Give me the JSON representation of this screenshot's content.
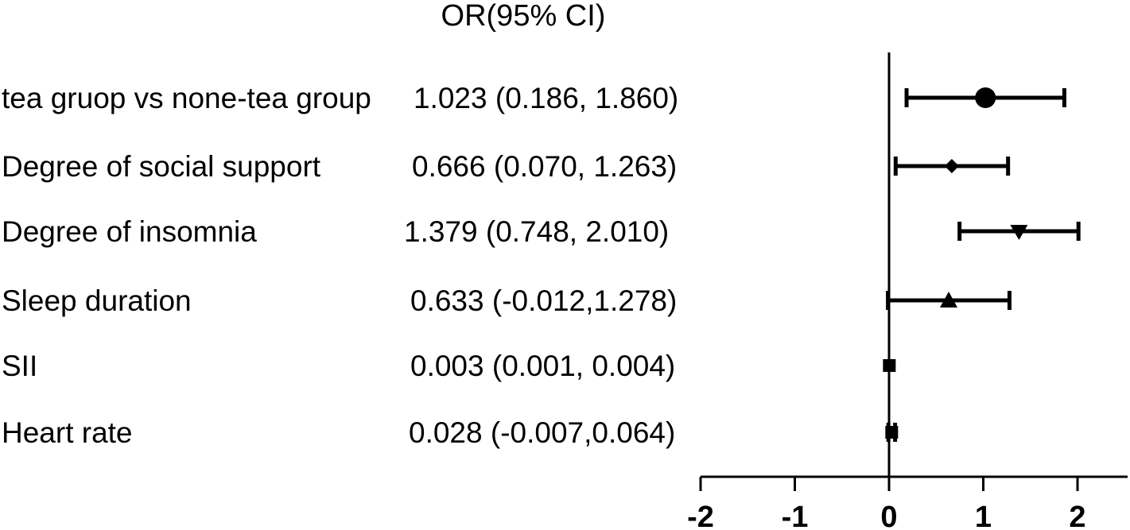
{
  "chart_data": {
    "type": "scatter",
    "subtype": "forest-plot",
    "column_header": "OR(95% CI)",
    "rows": [
      {
        "label": "tea gruop vs none-tea group",
        "value_text": "1.023 (0.186, 1.860)",
        "estimate": 1.023,
        "lower": 0.186,
        "upper": 1.86,
        "marker": "circle"
      },
      {
        "label": "Degree of social support",
        "value_text": "0.666 (0.070, 1.263)",
        "estimate": 0.666,
        "lower": 0.07,
        "upper": 1.263,
        "marker": "diamond"
      },
      {
        "label": "Degree of insomnia",
        "value_text": "1.379  (0.748, 2.010)",
        "estimate": 1.379,
        "lower": 0.748,
        "upper": 2.01,
        "marker": "triangle-down"
      },
      {
        "label": "Sleep duration",
        "value_text": "0.633 (-0.012,1.278)",
        "estimate": 0.633,
        "lower": -0.012,
        "upper": 1.278,
        "marker": "triangle-up"
      },
      {
        "label": "SII",
        "value_text": "0.003  (0.001, 0.004)",
        "estimate": 0.003,
        "lower": 0.001,
        "upper": 0.004,
        "marker": "square"
      },
      {
        "label": "Heart rate",
        "value_text": "0.028  (-0.007,0.064)",
        "estimate": 0.028,
        "lower": -0.007,
        "upper": 0.064,
        "marker": "square"
      }
    ],
    "x_ticks": [
      "-2",
      "-1",
      "0",
      "1",
      "2"
    ],
    "x_tick_values": [
      -2,
      -1,
      0,
      1,
      2
    ],
    "xlim": [
      -2,
      2.5
    ],
    "reference_line": 0,
    "grid": false,
    "color": "#000000"
  }
}
